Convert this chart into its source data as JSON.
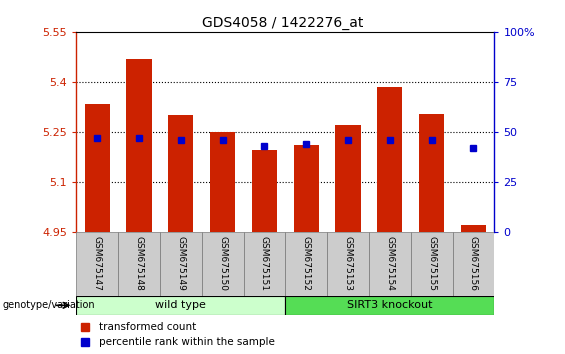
{
  "title": "GDS4058 / 1422276_at",
  "samples": [
    "GSM675147",
    "GSM675148",
    "GSM675149",
    "GSM675150",
    "GSM675151",
    "GSM675152",
    "GSM675153",
    "GSM675154",
    "GSM675155",
    "GSM675156"
  ],
  "transformed_count": [
    5.335,
    5.47,
    5.3,
    5.25,
    5.195,
    5.21,
    5.27,
    5.385,
    5.305,
    4.97
  ],
  "percentile_rank": [
    47,
    47,
    46,
    46,
    43,
    44,
    46,
    46,
    46,
    42
  ],
  "base_value": 4.95,
  "ylim": [
    4.95,
    5.55
  ],
  "yticks": [
    4.95,
    5.1,
    5.25,
    5.4,
    5.55
  ],
  "right_ylim": [
    0,
    100
  ],
  "right_yticks": [
    0,
    25,
    50,
    75,
    100
  ],
  "right_ytick_labels": [
    "0",
    "25",
    "50",
    "75",
    "100%"
  ],
  "bar_color": "#cc2200",
  "dot_color": "#0000cc",
  "bar_width": 0.6,
  "groups": [
    {
      "label": "wild type",
      "start": 0,
      "end": 5,
      "color": "#ccffcc"
    },
    {
      "label": "SIRT3 knockout",
      "start": 5,
      "end": 10,
      "color": "#55dd55"
    }
  ],
  "group_label_prefix": "genotype/variation",
  "legend_items": [
    {
      "color": "#cc2200",
      "label": "transformed count"
    },
    {
      "color": "#0000cc",
      "label": "percentile rank within the sample"
    }
  ],
  "grid_color": "black",
  "xlabel_color": "#cc2200",
  "right_axis_color": "#0000cc",
  "bg_color": "#cccccc"
}
